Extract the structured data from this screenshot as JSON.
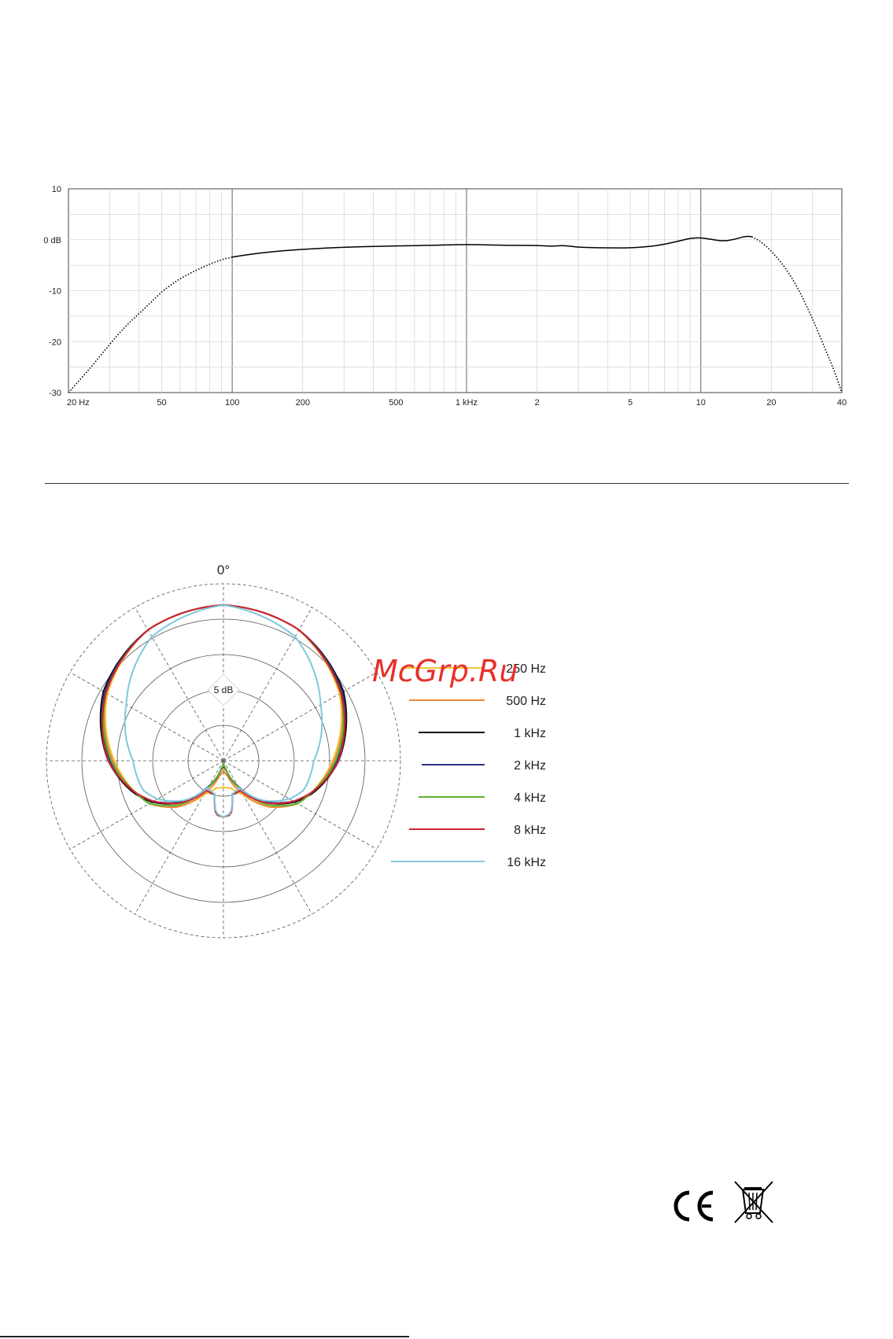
{
  "chart_data": [
    {
      "type": "line",
      "x_scale": "log",
      "xlim": [
        20,
        40000
      ],
      "ylim": [
        -30,
        10
      ],
      "x_tick_labels": [
        {
          "value": 20,
          "label": "20 Hz"
        },
        {
          "value": 50,
          "label": "50"
        },
        {
          "value": 100,
          "label": "100"
        },
        {
          "value": 200,
          "label": "200"
        },
        {
          "value": 500,
          "label": "500"
        },
        {
          "value": 1000,
          "label": "1 kHz"
        },
        {
          "value": 2000,
          "label": "2"
        },
        {
          "value": 5000,
          "label": "5"
        },
        {
          "value": 10000,
          "label": "10"
        },
        {
          "value": 20000,
          "label": "20"
        },
        {
          "value": 40000,
          "label": "40"
        }
      ],
      "y_tick_labels": [
        {
          "value": 10,
          "label": "10"
        },
        {
          "value": 0,
          "label": "0 dB"
        },
        {
          "value": -10,
          "label": "-10"
        },
        {
          "value": -20,
          "label": "-20"
        },
        {
          "value": -30,
          "label": "-30"
        }
      ],
      "grid": true,
      "series": [
        {
          "style": "dotted",
          "color": "#000000",
          "points": [
            [
              20,
              -30
            ],
            [
              25,
              -25
            ],
            [
              30,
              -20.5
            ],
            [
              35,
              -17
            ],
            [
              40,
              -14.5
            ],
            [
              45,
              -12.3
            ],
            [
              50,
              -10.2
            ],
            [
              55,
              -8.8
            ],
            [
              60,
              -7.6
            ],
            [
              70,
              -6
            ],
            [
              80,
              -4.8
            ],
            [
              90,
              -3.9
            ],
            [
              100,
              -3.4
            ]
          ]
        },
        {
          "style": "solid",
          "color": "#000000",
          "points": [
            [
              100,
              -3.4
            ],
            [
              130,
              -2.6
            ],
            [
              170,
              -2.1
            ],
            [
              250,
              -1.6
            ],
            [
              400,
              -1.3
            ],
            [
              700,
              -1.1
            ],
            [
              1000,
              -0.9
            ],
            [
              1500,
              -1.1
            ],
            [
              2000,
              -1.1
            ],
            [
              2300,
              -1.3
            ],
            [
              2600,
              -1.1
            ],
            [
              3000,
              -1.5
            ],
            [
              4000,
              -1.6
            ],
            [
              5000,
              -1.6
            ],
            [
              6500,
              -1.2
            ],
            [
              8000,
              -0.3
            ],
            [
              9000,
              0.3
            ],
            [
              10000,
              0.4
            ],
            [
              11000,
              0.1
            ],
            [
              12500,
              -0.3
            ],
            [
              14000,
              0.1
            ],
            [
              15500,
              0.7
            ],
            [
              16500,
              0.6
            ]
          ]
        },
        {
          "style": "dotted",
          "color": "#000000",
          "points": [
            [
              16500,
              0.6
            ],
            [
              18000,
              -0.3
            ],
            [
              20000,
              -2.2
            ],
            [
              23000,
              -5.5
            ],
            [
              26000,
              -9.5
            ],
            [
              30000,
              -15.5
            ],
            [
              34000,
              -21.5
            ],
            [
              37000,
              -25.5
            ],
            [
              40000,
              -30
            ]
          ]
        }
      ]
    },
    {
      "type": "polar",
      "top_label": "0°",
      "ring_label": "5 dB",
      "rings": 5,
      "spokes_deg": 30,
      "series": [
        {
          "name": "250 Hz",
          "color": "#f2c531",
          "values": [
            [
              0,
              1.0
            ],
            [
              30,
              0.97
            ],
            [
              60,
              0.86
            ],
            [
              90,
              0.7
            ],
            [
              110,
              0.6
            ],
            [
              120,
              0.55
            ],
            [
              135,
              0.42
            ],
            [
              150,
              0.25
            ],
            [
              165,
              0.18
            ],
            [
              180,
              0.17
            ]
          ]
        },
        {
          "name": "500 Hz",
          "color": "#f0893b",
          "values": [
            [
              0,
              1.0
            ],
            [
              30,
              0.97
            ],
            [
              60,
              0.87
            ],
            [
              90,
              0.71
            ],
            [
              110,
              0.6
            ],
            [
              120,
              0.55
            ],
            [
              135,
              0.42
            ],
            [
              150,
              0.24
            ],
            [
              165,
              0.1
            ],
            [
              180,
              0.06
            ]
          ]
        },
        {
          "name": "1 kHz",
          "color": "#111111",
          "values": [
            [
              0,
              1.0
            ],
            [
              30,
              0.97
            ],
            [
              60,
              0.89
            ],
            [
              90,
              0.74
            ],
            [
              110,
              0.61
            ],
            [
              120,
              0.53
            ],
            [
              135,
              0.38
            ],
            [
              150,
              0.2
            ],
            [
              165,
              0.06
            ],
            [
              180,
              0.02
            ]
          ]
        },
        {
          "name": "2 kHz",
          "color": "#2b3587",
          "values": [
            [
              0,
              1.0
            ],
            [
              30,
              0.97
            ],
            [
              60,
              0.88
            ],
            [
              90,
              0.73
            ],
            [
              110,
              0.6
            ],
            [
              120,
              0.52
            ],
            [
              135,
              0.37
            ],
            [
              150,
              0.19
            ],
            [
              165,
              0.05
            ],
            [
              180,
              0.02
            ]
          ]
        },
        {
          "name": "4 kHz",
          "color": "#5fb030",
          "values": [
            [
              0,
              1.0
            ],
            [
              30,
              0.97
            ],
            [
              60,
              0.87
            ],
            [
              90,
              0.72
            ],
            [
              110,
              0.6
            ],
            [
              120,
              0.55
            ],
            [
              135,
              0.4
            ],
            [
              150,
              0.2
            ],
            [
              165,
              0.05
            ],
            [
              180,
              0.02
            ]
          ]
        },
        {
          "name": "8 kHz",
          "color": "#d3222e",
          "values": [
            [
              0,
              1.0
            ],
            [
              30,
              0.97
            ],
            [
              60,
              0.87
            ],
            [
              90,
              0.74
            ],
            [
              110,
              0.6
            ],
            [
              120,
              0.52
            ],
            [
              135,
              0.38
            ],
            [
              150,
              0.22
            ],
            [
              165,
              0.22
            ],
            [
              172,
              0.35
            ],
            [
              180,
              0.36
            ]
          ]
        },
        {
          "name": "16 kHz",
          "color": "#7fc8dd",
          "values": [
            [
              0,
              1.0
            ],
            [
              30,
              0.92
            ],
            [
              60,
              0.72
            ],
            [
              90,
              0.58
            ],
            [
              110,
              0.55
            ],
            [
              120,
              0.49
            ],
            [
              135,
              0.36
            ],
            [
              150,
              0.2
            ],
            [
              165,
              0.22
            ],
            [
              172,
              0.34
            ],
            [
              180,
              0.36
            ]
          ]
        }
      ]
    }
  ],
  "watermark_text": "McGrp.Ru",
  "logos": {
    "ce": "ce-mark",
    "weee": "crossed-out-bin"
  }
}
